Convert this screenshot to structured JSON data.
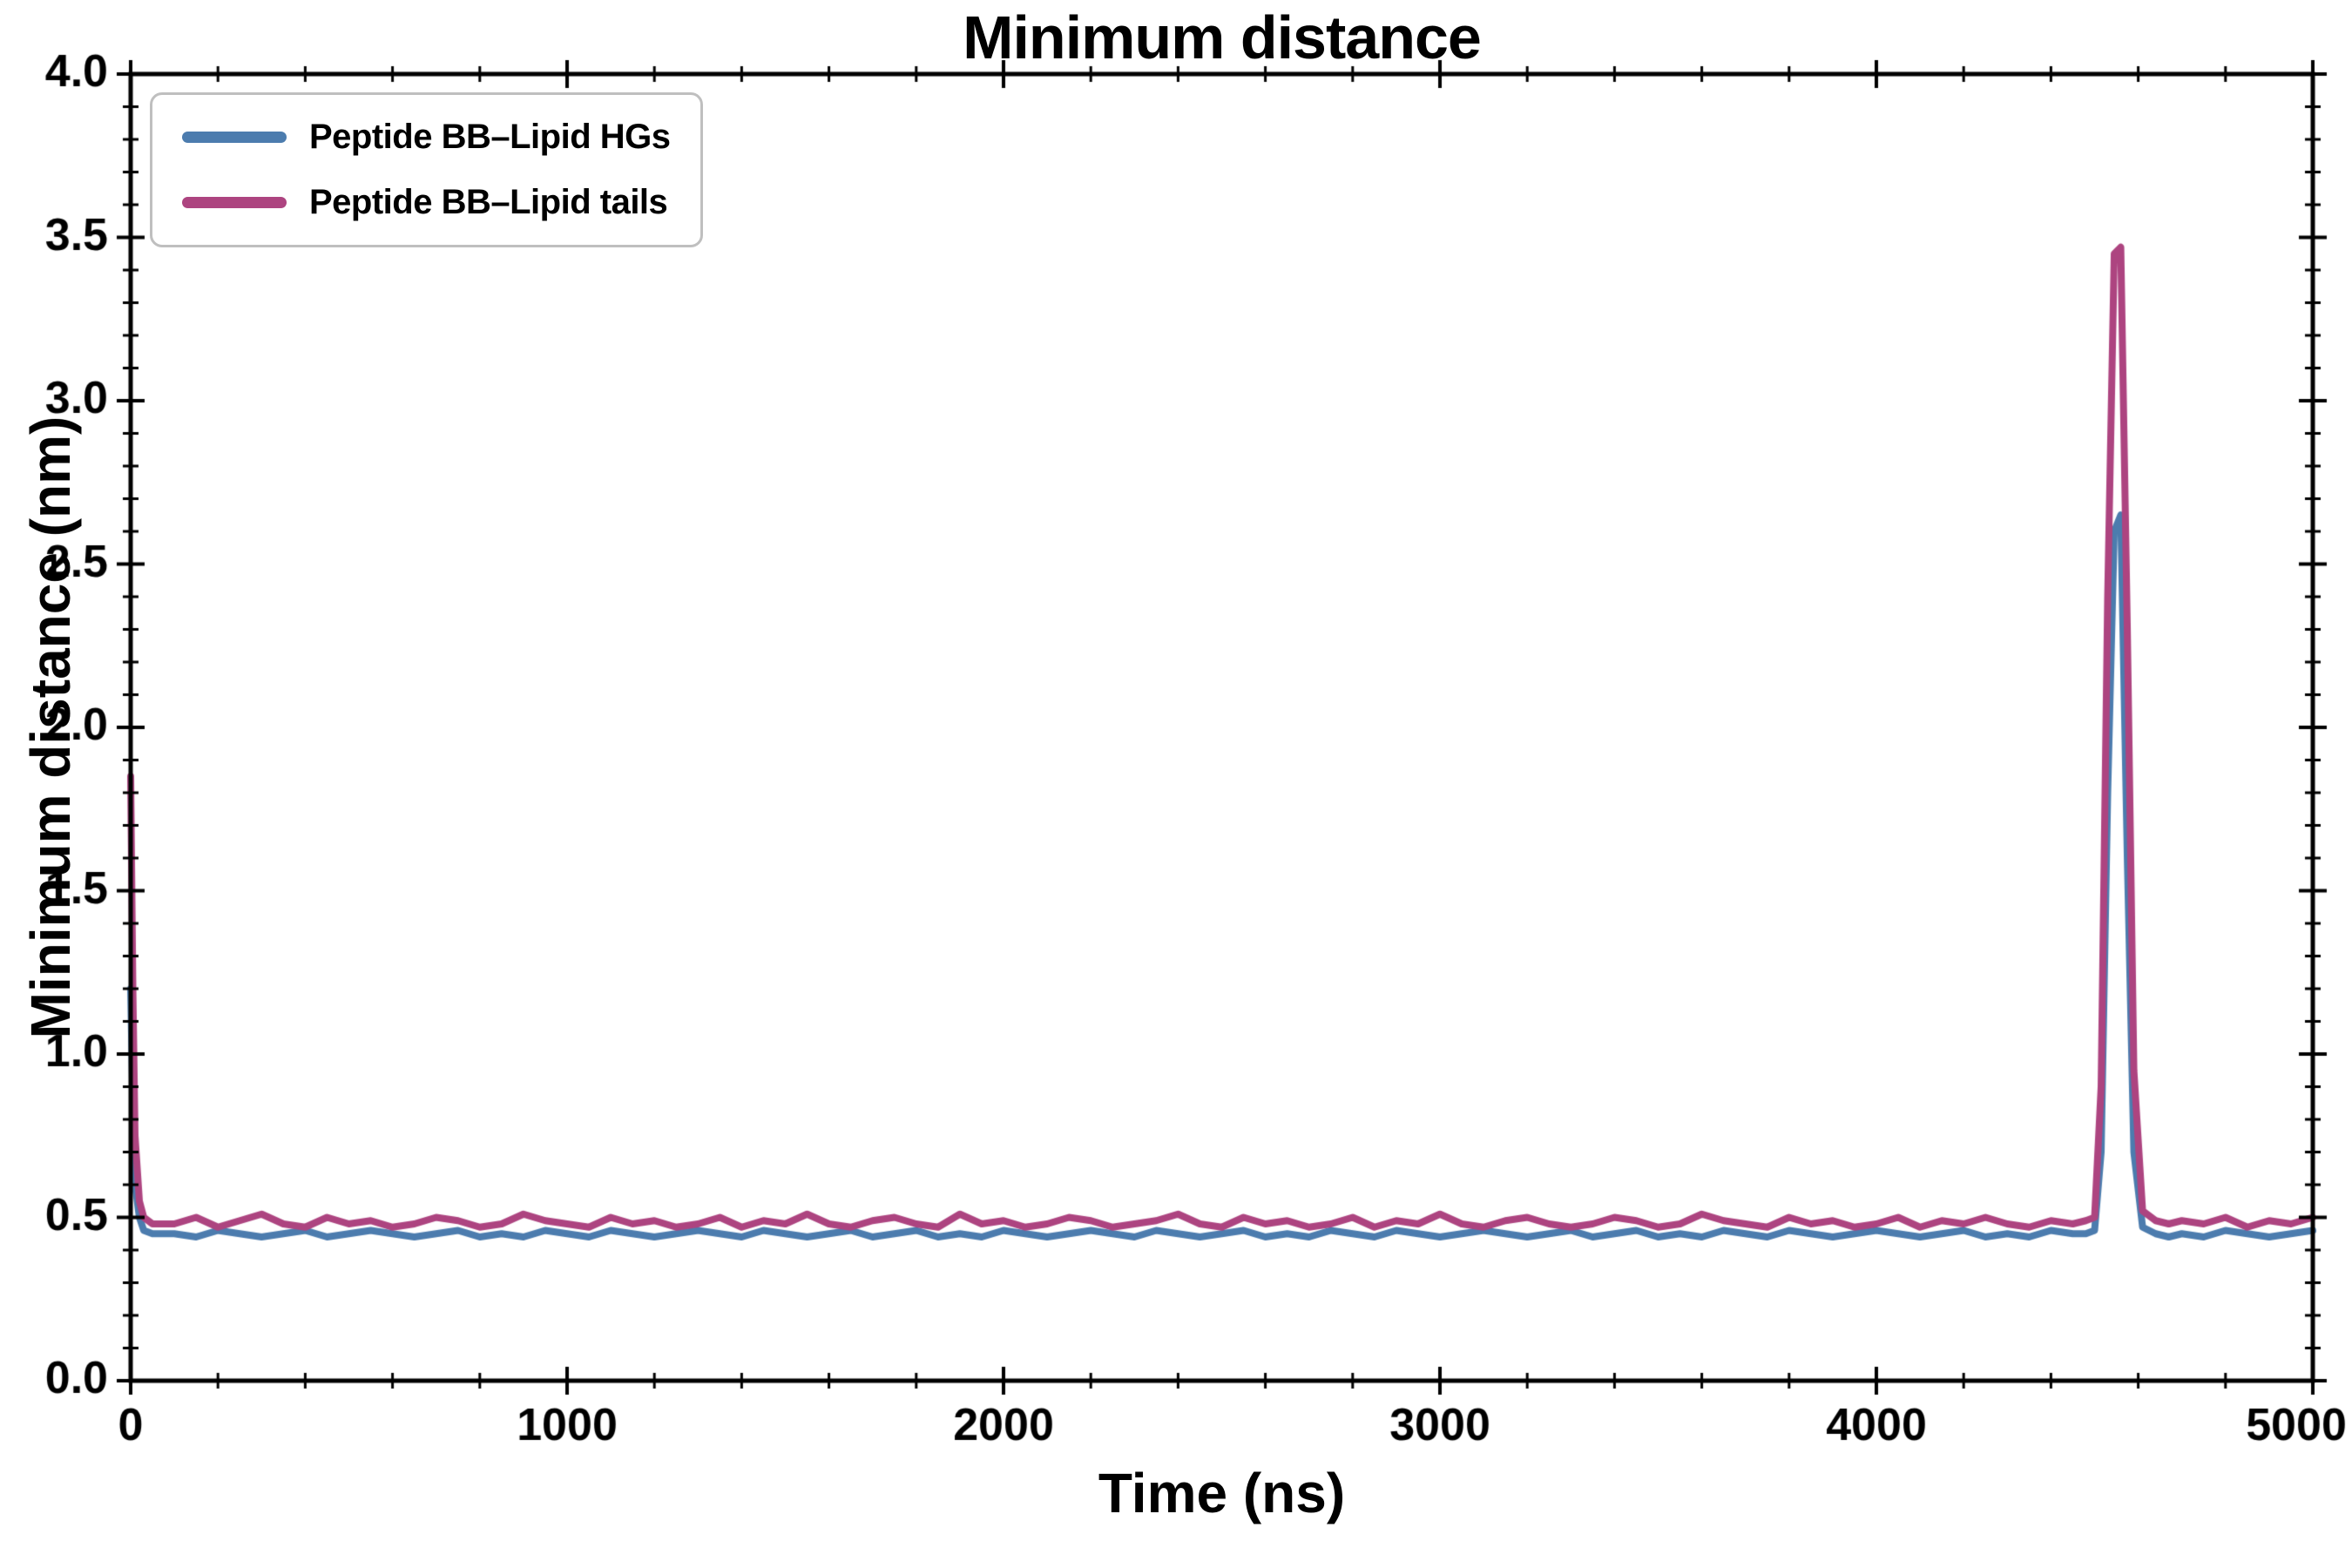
{
  "figure": {
    "background": "#ffffff"
  },
  "chart_data": {
    "type": "line",
    "title": "Minimum distance",
    "xlabel": "Time (ns)",
    "ylabel": "Minimum distance (nm)",
    "xlim": [
      0,
      5000
    ],
    "ylim": [
      0.0,
      4.0
    ],
    "x_ticks": [
      0,
      1000,
      2000,
      3000,
      4000,
      5000
    ],
    "y_ticks": [
      0.0,
      0.5,
      1.0,
      1.5,
      2.0,
      2.5,
      3.0,
      3.5,
      4.0
    ],
    "x_minor_step": 200,
    "y_minor_step": 0.1,
    "grid": false,
    "legend_position": "upper-left",
    "axis_color": "#000000",
    "x": [
      0,
      5,
      10,
      20,
      30,
      50,
      100,
      150,
      200,
      250,
      300,
      350,
      400,
      450,
      500,
      550,
      600,
      650,
      700,
      750,
      800,
      850,
      900,
      950,
      1000,
      1050,
      1100,
      1150,
      1200,
      1250,
      1300,
      1350,
      1400,
      1450,
      1500,
      1550,
      1600,
      1650,
      1700,
      1750,
      1800,
      1850,
      1900,
      1950,
      2000,
      2050,
      2100,
      2150,
      2200,
      2250,
      2300,
      2350,
      2400,
      2450,
      2500,
      2550,
      2600,
      2650,
      2700,
      2750,
      2800,
      2850,
      2900,
      2950,
      3000,
      3050,
      3100,
      3150,
      3200,
      3250,
      3300,
      3350,
      3400,
      3450,
      3500,
      3550,
      3600,
      3650,
      3700,
      3750,
      3800,
      3850,
      3900,
      3950,
      4000,
      4050,
      4100,
      4150,
      4200,
      4250,
      4300,
      4350,
      4400,
      4450,
      4480,
      4500,
      4515,
      4530,
      4545,
      4560,
      4575,
      4590,
      4610,
      4640,
      4670,
      4700,
      4750,
      4800,
      4850,
      4900,
      4950,
      5000
    ],
    "series": [
      {
        "name": "Peptide BB–Lipid HGs",
        "color": "#4c7cae",
        "y": [
          1.2,
          0.85,
          0.6,
          0.5,
          0.46,
          0.45,
          0.45,
          0.44,
          0.46,
          0.45,
          0.44,
          0.45,
          0.46,
          0.44,
          0.45,
          0.46,
          0.45,
          0.44,
          0.45,
          0.46,
          0.44,
          0.45,
          0.44,
          0.46,
          0.45,
          0.44,
          0.46,
          0.45,
          0.44,
          0.45,
          0.46,
          0.45,
          0.44,
          0.46,
          0.45,
          0.44,
          0.45,
          0.46,
          0.44,
          0.45,
          0.46,
          0.44,
          0.45,
          0.44,
          0.46,
          0.45,
          0.44,
          0.45,
          0.46,
          0.45,
          0.44,
          0.46,
          0.45,
          0.44,
          0.45,
          0.46,
          0.44,
          0.45,
          0.44,
          0.46,
          0.45,
          0.44,
          0.46,
          0.45,
          0.44,
          0.45,
          0.46,
          0.45,
          0.44,
          0.45,
          0.46,
          0.44,
          0.45,
          0.46,
          0.44,
          0.45,
          0.44,
          0.46,
          0.45,
          0.44,
          0.46,
          0.45,
          0.44,
          0.45,
          0.46,
          0.45,
          0.44,
          0.45,
          0.46,
          0.44,
          0.45,
          0.44,
          0.46,
          0.45,
          0.45,
          0.46,
          0.7,
          1.8,
          2.6,
          2.65,
          1.6,
          0.7,
          0.47,
          0.45,
          0.44,
          0.45,
          0.44,
          0.46,
          0.45,
          0.44,
          0.45,
          0.46
        ]
      },
      {
        "name": "Peptide BB–Lipid tails",
        "color": "#ad4480",
        "y": [
          1.85,
          1.2,
          0.75,
          0.55,
          0.5,
          0.48,
          0.48,
          0.5,
          0.47,
          0.49,
          0.51,
          0.48,
          0.47,
          0.5,
          0.48,
          0.49,
          0.47,
          0.48,
          0.5,
          0.49,
          0.47,
          0.48,
          0.51,
          0.49,
          0.48,
          0.47,
          0.5,
          0.48,
          0.49,
          0.47,
          0.48,
          0.5,
          0.47,
          0.49,
          0.48,
          0.51,
          0.48,
          0.47,
          0.49,
          0.5,
          0.48,
          0.47,
          0.51,
          0.48,
          0.49,
          0.47,
          0.48,
          0.5,
          0.49,
          0.47,
          0.48,
          0.49,
          0.51,
          0.48,
          0.47,
          0.5,
          0.48,
          0.49,
          0.47,
          0.48,
          0.5,
          0.47,
          0.49,
          0.48,
          0.51,
          0.48,
          0.47,
          0.49,
          0.5,
          0.48,
          0.47,
          0.48,
          0.5,
          0.49,
          0.47,
          0.48,
          0.51,
          0.49,
          0.48,
          0.47,
          0.5,
          0.48,
          0.49,
          0.47,
          0.48,
          0.5,
          0.47,
          0.49,
          0.48,
          0.5,
          0.48,
          0.47,
          0.49,
          0.48,
          0.49,
          0.5,
          0.9,
          2.4,
          3.45,
          3.47,
          2.3,
          0.95,
          0.52,
          0.49,
          0.48,
          0.49,
          0.48,
          0.5,
          0.47,
          0.49,
          0.48,
          0.5
        ]
      }
    ]
  }
}
